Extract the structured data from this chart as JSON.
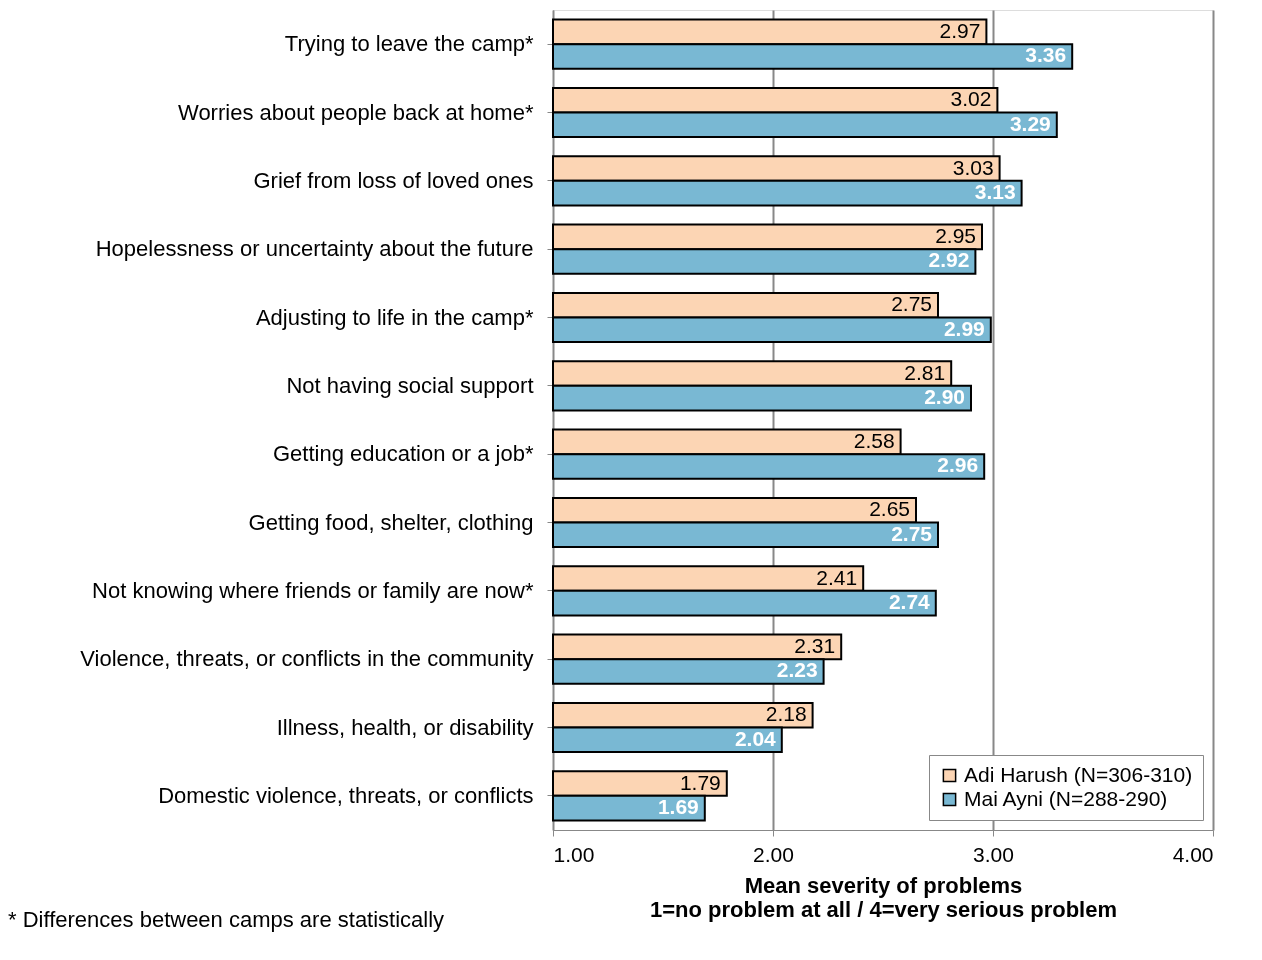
{
  "chart_data": {
    "type": "bar",
    "orientation": "horizontal",
    "categories": [
      "Trying to leave the camp*",
      "Worries about people back at home*",
      "Grief from loss of loved ones",
      "Hopelessness or uncertainty about the future",
      "Adjusting to life in the camp*",
      "Not having social support",
      "Getting education or a job*",
      "Getting food, shelter, clothing",
      "Not knowing where friends or family are now*",
      "Violence, threats, or conflicts in the community",
      "Illness, health, or disability",
      "Domestic violence, threats, or conflicts"
    ],
    "series": [
      {
        "name": "Adi Harush (N=306-310)",
        "color": "#fcd5b4",
        "values": [
          2.97,
          3.02,
          3.03,
          2.95,
          2.75,
          2.81,
          2.58,
          2.65,
          2.41,
          2.31,
          2.18,
          1.79
        ],
        "value_labels": [
          "2.97",
          "3.02",
          "3.03",
          "2.95",
          "2.75",
          "2.81",
          "2.58",
          "2.65",
          "2.41",
          "2.31",
          "2.18",
          "1.79"
        ]
      },
      {
        "name": "Mai Ayni (N=288-290)",
        "color": "#79b8d3",
        "values": [
          3.36,
          3.29,
          3.13,
          2.92,
          2.99,
          2.9,
          2.96,
          2.75,
          2.74,
          2.23,
          2.04,
          1.69
        ],
        "value_labels": [
          "3.36",
          "3.29",
          "3.13",
          "2.92",
          "2.99",
          "2.90",
          "2.96",
          "2.75",
          "2.74",
          "2.23",
          "2.04",
          "1.69"
        ]
      }
    ],
    "xlim": [
      1,
      4
    ],
    "xticks": [
      {
        "value": 1,
        "label": "1.00"
      },
      {
        "value": 2,
        "label": "2.00"
      },
      {
        "value": 3,
        "label": "3.00"
      },
      {
        "value": 4,
        "label": "4.00"
      }
    ],
    "xlabel": "Mean severity of problems\n1=no problem at all / 4=very serious problem",
    "grid": "x",
    "legend": "bottom right",
    "annotations": [
      "* Differences between camps are statistically"
    ]
  }
}
